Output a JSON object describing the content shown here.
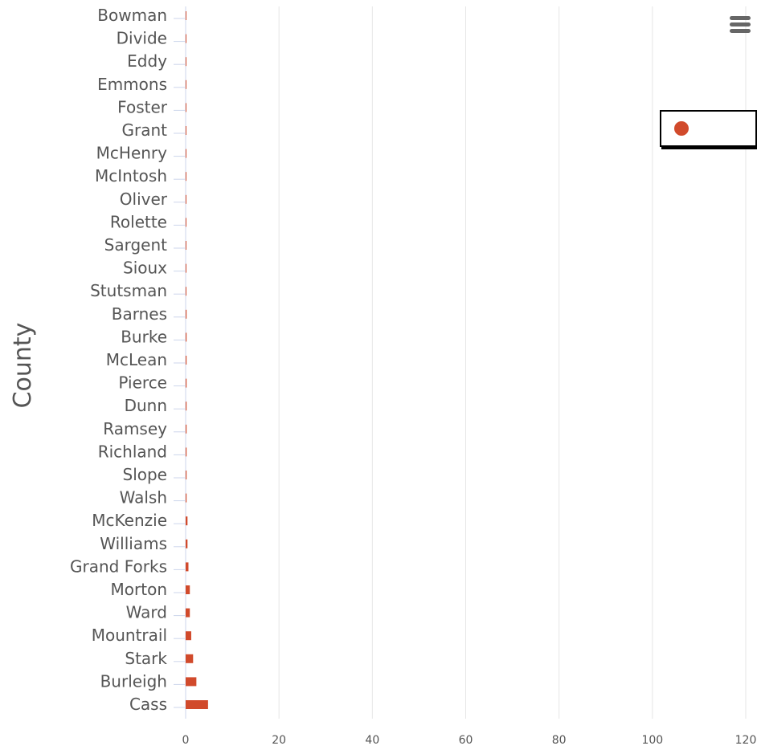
{
  "chart_data": {
    "type": "bar",
    "orientation": "horizontal",
    "ylabel": "County",
    "xlabel": "",
    "xlim": [
      0,
      120
    ],
    "x_ticks": [
      "0",
      "20",
      "40",
      "60",
      "80",
      "100",
      "120"
    ],
    "grid": "vertical",
    "legend_position": "top-right",
    "bar_color": "#d14a2b",
    "categories": [
      "Bowman",
      "Divide",
      "Eddy",
      "Emmons",
      "Foster",
      "Grant",
      "McHenry",
      "McIntosh",
      "Oliver",
      "Rolette",
      "Sargent",
      "Sioux",
      "Stutsman",
      "Barnes",
      "Burke",
      "McLean",
      "Pierce",
      "Dunn",
      "Ramsey",
      "Richland",
      "Slope",
      "Walsh",
      "McKenzie",
      "Williams",
      "Grand Forks",
      "Morton",
      "Ward",
      "Mountrail",
      "Stark",
      "Burleigh",
      "Cass"
    ],
    "series": [
      {
        "name": "",
        "values": [
          0.1,
          0.1,
          0.1,
          0.1,
          0.1,
          0.1,
          0.1,
          0.1,
          0.1,
          0.1,
          0.1,
          0.1,
          0.1,
          0.2,
          0.2,
          0.2,
          0.2,
          0.2,
          0.2,
          0.2,
          0.2,
          0.2,
          0.4,
          0.4,
          0.6,
          0.9,
          0.9,
          1.2,
          1.6,
          2.3,
          4.8
        ]
      }
    ]
  },
  "legend": {
    "label": "",
    "marker_color": "#d14a2b"
  },
  "menu": {
    "icon": "hamburger-menu-icon"
  }
}
